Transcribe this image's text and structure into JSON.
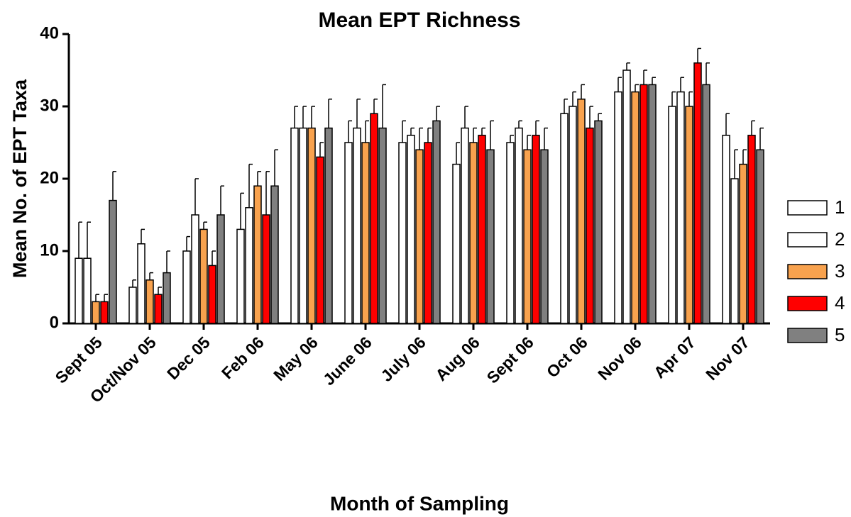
{
  "chart_data": {
    "type": "bar",
    "title": "Mean EPT Richness",
    "x_label": "Month of Sampling",
    "y_label": "Mean No. of EPT Taxa",
    "categories": [
      "Sept 05",
      "Oct/Nov 05",
      "Dec 05",
      "Feb 06",
      "May 06",
      "June 06",
      "July 06",
      "Aug 06",
      "Sept 06",
      "Oct 06",
      "Nov 06",
      "Apr 07",
      "Nov 07"
    ],
    "ylim": [
      0,
      40
    ],
    "yticks": [
      0,
      10,
      20,
      30,
      40
    ],
    "series": [
      {
        "name": "1",
        "color": "#ffffff",
        "values": [
          9,
          5,
          10,
          13,
          27,
          25,
          25,
          22,
          25,
          29,
          32,
          30,
          26
        ],
        "errors": [
          5,
          1,
          2,
          5,
          3,
          3,
          3,
          3,
          1,
          2,
          2,
          2,
          3
        ]
      },
      {
        "name": "2",
        "color": "#ffffff",
        "values": [
          9,
          11,
          15,
          16,
          27,
          27,
          26,
          27,
          27,
          30,
          35,
          32,
          20
        ],
        "errors": [
          5,
          2,
          5,
          6,
          3,
          4,
          1,
          3,
          1,
          2,
          1,
          2,
          4
        ]
      },
      {
        "name": "3",
        "color": "#f8a24e",
        "values": [
          3,
          6,
          13,
          19,
          27,
          25,
          24,
          25,
          24,
          31,
          32,
          30,
          22
        ],
        "errors": [
          1,
          1,
          1,
          2,
          3,
          3,
          3,
          2,
          2,
          2,
          1,
          2,
          2
        ]
      },
      {
        "name": "4",
        "color": "#ff0000",
        "values": [
          3,
          4,
          8,
          15,
          23,
          29,
          25,
          26,
          26,
          27,
          33,
          36,
          26
        ],
        "errors": [
          1,
          1,
          2,
          6,
          2,
          2,
          2,
          1,
          2,
          3,
          2,
          2,
          2
        ]
      },
      {
        "name": "5",
        "color": "#808080",
        "values": [
          17,
          7,
          15,
          19,
          27,
          27,
          28,
          24,
          24,
          28,
          33,
          33,
          24
        ],
        "errors": [
          4,
          3,
          4,
          5,
          4,
          6,
          2,
          4,
          3,
          1,
          1,
          3,
          3
        ]
      }
    ]
  }
}
